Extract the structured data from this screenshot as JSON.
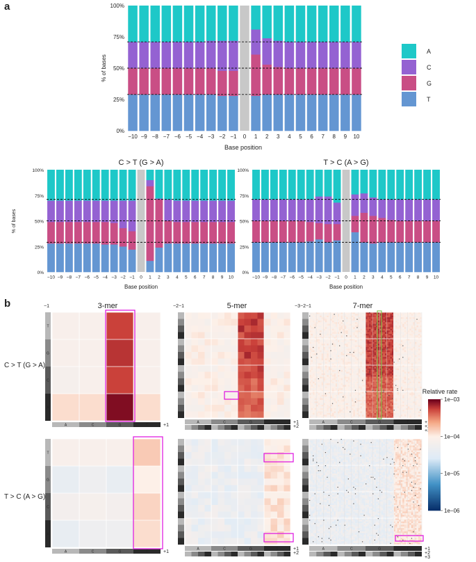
{
  "figure": {
    "panel_a_label": "a",
    "panel_b_label": "b",
    "panel_b_row_labels": [
      "C > T (G > A)",
      "T > C (A > G)"
    ],
    "colors": {
      "A": "#1ec8c8",
      "C": "#9462d2",
      "G": "#c94e85",
      "T": "#6496d2",
      "gap": "#c8c8c8"
    }
  },
  "chart_data": [
    {
      "id": "top",
      "type": "bar",
      "stacked": true,
      "title": "",
      "xlabel": "Base position",
      "ylabel": "% of bases",
      "categories": [
        "-10",
        "-9",
        "-8",
        "-7",
        "-6",
        "-5",
        "-4",
        "-3",
        "-2",
        "-1",
        "0",
        "1",
        "2",
        "3",
        "4",
        "5",
        "6",
        "7",
        "8",
        "9",
        "10"
      ],
      "tick_labels": [
        "−10",
        "−9",
        "−8",
        "−7",
        "−6",
        "−5",
        "−4",
        "−3",
        "−2",
        "−1",
        "0",
        "1",
        "2",
        "3",
        "4",
        "5",
        "6",
        "7",
        "8",
        "9",
        "10"
      ],
      "yticks": [
        "0%",
        "25%",
        "50%",
        "75%",
        "100%"
      ],
      "ylim": [
        0,
        100
      ],
      "hlines": [
        29,
        50,
        71
      ],
      "gap_index": 10,
      "series": [
        {
          "name": "T",
          "values": [
            29,
            29,
            29,
            29,
            29,
            29,
            29,
            29,
            28,
            28,
            0,
            28,
            29,
            29,
            29,
            29,
            29,
            29,
            29,
            29,
            29
          ]
        },
        {
          "name": "G",
          "values": [
            21,
            21,
            21,
            21,
            21,
            21,
            21,
            21,
            20,
            20,
            0,
            33,
            24,
            22,
            21,
            21,
            21,
            21,
            21,
            21,
            21
          ]
        },
        {
          "name": "C",
          "values": [
            21,
            21,
            21,
            21,
            21,
            21,
            21,
            22,
            24,
            24,
            0,
            20,
            21,
            21,
            21,
            21,
            21,
            21,
            21,
            21,
            21
          ]
        },
        {
          "name": "A",
          "values": [
            29,
            29,
            29,
            29,
            29,
            29,
            29,
            28,
            28,
            28,
            0,
            19,
            26,
            28,
            29,
            29,
            29,
            29,
            29,
            29,
            29
          ]
        }
      ],
      "legend": [
        "A",
        "C",
        "G",
        "T"
      ]
    },
    {
      "id": "ct",
      "type": "bar",
      "stacked": true,
      "title": "C > T (G > A)",
      "xlabel": "Base position",
      "ylabel": "% of bases",
      "categories": [
        "-10",
        "-9",
        "-8",
        "-7",
        "-6",
        "-5",
        "-4",
        "-3",
        "-2",
        "-1",
        "0",
        "1",
        "2",
        "3",
        "4",
        "5",
        "6",
        "7",
        "8",
        "9",
        "10"
      ],
      "tick_labels": [
        "−10",
        "−9",
        "−8",
        "−7",
        "−6",
        "−5",
        "−4",
        "−3",
        "−2",
        "−1",
        "0",
        "1",
        "2",
        "3",
        "4",
        "5",
        "6",
        "7",
        "8",
        "9",
        "10"
      ],
      "yticks": [
        "0%",
        "25%",
        "50%",
        "75%",
        "100%"
      ],
      "ylim": [
        0,
        100
      ],
      "hlines": [
        29,
        50,
        71
      ],
      "gap_index": 10,
      "series": [
        {
          "name": "T",
          "values": [
            28,
            28,
            28,
            28,
            28,
            28,
            27,
            27,
            25,
            22,
            0,
            11,
            24,
            28,
            28,
            28,
            28,
            28,
            28,
            28,
            28
          ]
        },
        {
          "name": "G",
          "values": [
            21,
            21,
            21,
            21,
            21,
            21,
            22,
            21,
            18,
            18,
            0,
            73,
            47,
            22,
            21,
            21,
            21,
            21,
            21,
            21,
            21
          ]
        },
        {
          "name": "C",
          "values": [
            21,
            21,
            21,
            21,
            21,
            21,
            21,
            22,
            27,
            30,
            0,
            6,
            1,
            21,
            21,
            21,
            21,
            21,
            21,
            21,
            21
          ]
        },
        {
          "name": "A",
          "values": [
            30,
            30,
            30,
            30,
            30,
            30,
            30,
            30,
            30,
            30,
            0,
            10,
            28,
            29,
            30,
            30,
            30,
            30,
            30,
            30,
            30
          ]
        }
      ]
    },
    {
      "id": "tc",
      "type": "bar",
      "stacked": true,
      "title": "T > C (A > G)",
      "xlabel": "Base position",
      "ylabel": "% of bases",
      "categories": [
        "-10",
        "-9",
        "-8",
        "-7",
        "-6",
        "-5",
        "-4",
        "-3",
        "-2",
        "-1",
        "0",
        "1",
        "2",
        "3",
        "4",
        "5",
        "6",
        "7",
        "8",
        "9",
        "10"
      ],
      "tick_labels": [
        "−10",
        "−9",
        "−8",
        "−7",
        "−6",
        "−5",
        "−4",
        "−3",
        "−2",
        "−1",
        "0",
        "1",
        "2",
        "3",
        "4",
        "5",
        "6",
        "7",
        "8",
        "9",
        "10"
      ],
      "yticks": [
        "0%",
        "25%",
        "50%",
        "75%",
        "100%"
      ],
      "ylim": [
        0,
        100
      ],
      "hlines": [
        29,
        50,
        71
      ],
      "gap_index": 10,
      "series": [
        {
          "name": "T",
          "values": [
            29,
            29,
            29,
            29,
            29,
            29,
            30,
            32,
            29,
            31,
            0,
            39,
            29,
            28,
            29,
            29,
            29,
            29,
            29,
            29,
            29
          ]
        },
        {
          "name": "G",
          "values": [
            21,
            21,
            21,
            21,
            21,
            21,
            19,
            16,
            18,
            16,
            0,
            16,
            29,
            27,
            24,
            22,
            21,
            21,
            21,
            21,
            21
          ]
        },
        {
          "name": "C",
          "values": [
            21,
            21,
            21,
            21,
            21,
            21,
            22,
            26,
            27,
            21,
            0,
            21,
            19,
            18,
            18,
            20,
            21,
            21,
            21,
            21,
            21
          ]
        },
        {
          "name": "A",
          "values": [
            29,
            29,
            29,
            29,
            29,
            29,
            29,
            26,
            26,
            32,
            0,
            24,
            23,
            27,
            29,
            29,
            29,
            29,
            29,
            29,
            29
          ]
        }
      ]
    },
    {
      "id": "heatmaps",
      "type": "heatmap",
      "column_titles": [
        "3-mer",
        "5-mer",
        "7-mer"
      ],
      "row_labels": [
        "C > T (G > A)",
        "T > C (A > G)"
      ],
      "bases": [
        "A",
        "C",
        "G",
        "T"
      ],
      "axis_left_labels": {
        "3": "−1",
        "5": "−2−1",
        "7": "−3−2−1"
      },
      "axis_right_labels": {
        "3": [
          "+1"
        ],
        "5": [
          "+1",
          "+2"
        ],
        "7": [
          "+1",
          "+2",
          "+3"
        ]
      },
      "colorbar": {
        "title": "Relative rate",
        "ticks": [
          "1e−03",
          "1e−04",
          "1e−05",
          "1e−06"
        ],
        "scale": "log10",
        "range": [
          1e-06,
          0.001
        ]
      },
      "ct_3mer_log10": [
        [
          -4.1,
          -4.1,
          -3.25,
          -4.1
        ],
        [
          -4.1,
          -4.1,
          -3.2,
          -4.1
        ],
        [
          -4.15,
          -4.1,
          -3.25,
          -4.1
        ],
        [
          -3.9,
          -3.9,
          -3.05,
          -3.9
        ]
      ],
      "tc_3mer_log10": [
        [
          -4.1,
          -4.1,
          -4.1,
          -3.8
        ],
        [
          -4.4,
          -4.3,
          -4.4,
          -4.0
        ],
        [
          -4.2,
          -4.15,
          -4.2,
          -3.85
        ],
        [
          -4.4,
          -4.3,
          -4.3,
          -3.9
        ]
      ]
    }
  ]
}
